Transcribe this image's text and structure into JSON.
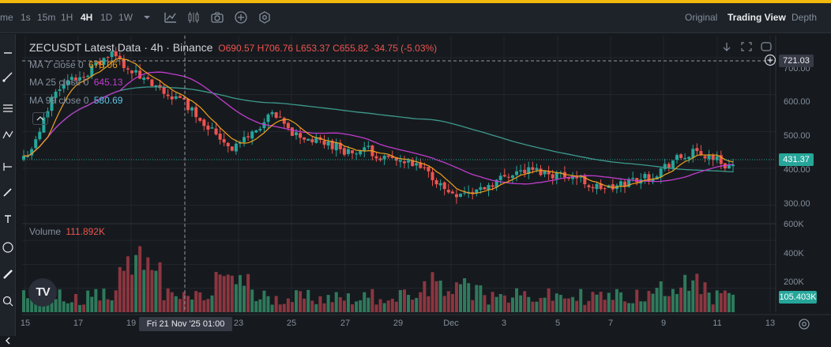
{
  "toolbar": {
    "timeframes": [
      {
        "label": "me",
        "active": false
      },
      {
        "label": "1s",
        "active": false
      },
      {
        "label": "15m",
        "active": false
      },
      {
        "label": "1H",
        "active": false
      },
      {
        "label": "4H",
        "active": true
      },
      {
        "label": "1D",
        "active": false
      },
      {
        "label": "1W",
        "active": false
      }
    ],
    "views": [
      {
        "label": "Original",
        "active": false
      },
      {
        "label": "Trading View",
        "active": true
      },
      {
        "label": "Depth",
        "active": false
      }
    ]
  },
  "legend": {
    "title": "ZECUSDT Latest Data · 4h · Binance",
    "ohlc": "O690.57 H706.76 L653.37 C655.82 -34.75 (-5.03%)",
    "ma7_label": "MA 7 close 0",
    "ma7_value": "678.06",
    "ma25_label": "MA 25 close 0",
    "ma25_value": "645.13",
    "ma99_label": "MA 99 close 0",
    "ma99_value": "580.69",
    "volume_label": "Volume",
    "volume_value": "111.892K"
  },
  "price_axis": {
    "ticks": [
      "700.00",
      "600.00",
      "500.00",
      "400.00",
      "300.00"
    ],
    "crosshair_price": "721.03",
    "last_price": "431.37"
  },
  "volume_axis": {
    "ticks": [
      "600K",
      "400K",
      "200K"
    ],
    "last_volume": "105.403K"
  },
  "time_axis": {
    "ticks": [
      "15",
      "17",
      "19",
      "23",
      "25",
      "27",
      "29",
      "Dec",
      "3",
      "5",
      "7",
      "9",
      "11",
      "13"
    ],
    "crosshair_time": "Fri 21 Nov '25   01:00"
  },
  "logo_text": "TV",
  "colors": {
    "background": "#161a1e",
    "up": "#26a69a",
    "down": "#ef5350",
    "ma7": "#f0a01e",
    "ma25": "#c13ccd",
    "ma99": "#3d9a8e",
    "accent": "#f0b90b"
  },
  "chart_data": {
    "type": "candlestick",
    "title": "ZECUSDT Latest Data · 4h · Binance",
    "x_range": [
      "2025-11-15",
      "2025-12-13"
    ],
    "ylim": [
      250,
      760
    ],
    "grid": true,
    "candles": [],
    "ma7": [],
    "ma25": [],
    "ma99": [],
    "volume": []
  }
}
